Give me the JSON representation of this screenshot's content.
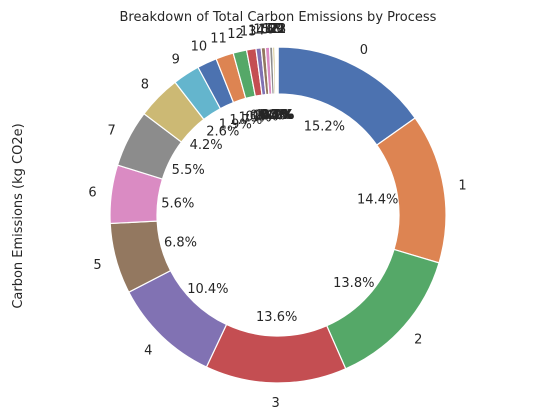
{
  "chart_data": {
    "type": "pie",
    "style": "donut",
    "title": "Breakdown of Total Carbon Emissions by Process",
    "ylabel": "Carbon Emissions (kg CO2e)",
    "categories": [
      "0",
      "1",
      "2",
      "3",
      "4",
      "5",
      "6",
      "7",
      "8",
      "9",
      "10",
      "11",
      "12",
      "13",
      "14",
      "15",
      "16",
      "17",
      "18",
      "19",
      "20",
      "21",
      "22",
      "23"
    ],
    "values": [
      15.2,
      14.4,
      13.8,
      13.6,
      10.4,
      6.8,
      5.6,
      5.5,
      4.2,
      2.6,
      1.9,
      1.7,
      1.3,
      0.9,
      0.5,
      0.4,
      0.4,
      0.3,
      0.2,
      0.1,
      0.1,
      0.1,
      0.0,
      0.0
    ],
    "percent_labels": [
      "15.2%",
      "14.4%",
      "13.8%",
      "13.6%",
      "10.4%",
      "6.8%",
      "5.6%",
      "5.5%",
      "4.2%",
      "2.6%",
      "1.9%",
      "1.7%",
      "1.3%",
      "0.9%",
      "0.5%",
      "0.4%",
      "0.4%",
      "0.3%",
      "0.2%",
      "0.1%",
      "0.1%",
      "0.1%",
      "0.0%",
      "0.0%"
    ],
    "colors": [
      "#4c72b0",
      "#dd8452",
      "#55a868",
      "#c44e52",
      "#8172b3",
      "#937860",
      "#da8bc3",
      "#8c8c8c",
      "#ccb974",
      "#64b5cd",
      "#4c72b0",
      "#dd8452",
      "#55a868",
      "#c44e52",
      "#8172b3",
      "#937860",
      "#da8bc3",
      "#8c8c8c",
      "#ccb974",
      "#64b5cd",
      "#4c72b0",
      "#dd8452",
      "#55a868",
      "#c44e52"
    ],
    "start_angle_deg": 90,
    "direction": "clockwise",
    "legend": "none"
  }
}
